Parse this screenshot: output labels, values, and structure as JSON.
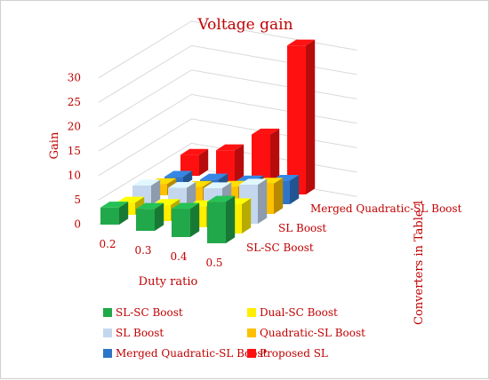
{
  "chart_data": {
    "type": "bar",
    "title": "Voltage gain",
    "xlabel": "Duty ratio",
    "ylabel": "Gain",
    "zlabel": "Converters in Table 1",
    "categories": [
      "0.2",
      "0.3",
      "0.4",
      "0.5"
    ],
    "series": [
      {
        "name": "SL-SC Boost",
        "values": [
          3.5,
          4.5,
          5.8,
          8.5
        ],
        "color": "#21a84a"
      },
      {
        "name": "Dual-SC Boost",
        "values": [
          2.5,
          3.3,
          4.3,
          6.0
        ],
        "color": "#ffee00"
      },
      {
        "name": "SL Boost",
        "values": [
          4.0,
          4.8,
          6.0,
          8.0
        ],
        "color": "#c4d7ef"
      },
      {
        "name": "Quadratic-SL Boost",
        "values": [
          2.3,
          3.0,
          4.3,
          6.2
        ],
        "color": "#ffc000"
      },
      {
        "name": "Merged Quadratic-SL Boost",
        "values": [
          1.8,
          2.5,
          3.4,
          4.8
        ],
        "color": "#2e75c8"
      },
      {
        "name": "Proposed SL",
        "values": [
          4.3,
          6.5,
          11.0,
          30.5
        ],
        "color": "#ff1010"
      }
    ],
    "depth_tick_labels": [
      "SL-SC Boost",
      "SL Boost",
      "Merged Quadratic-SL Boost"
    ],
    "y_ticks": [
      0,
      5,
      10,
      15,
      20,
      25,
      30
    ],
    "ylim": [
      0,
      33
    ],
    "grid": true,
    "legend": "bottom"
  }
}
